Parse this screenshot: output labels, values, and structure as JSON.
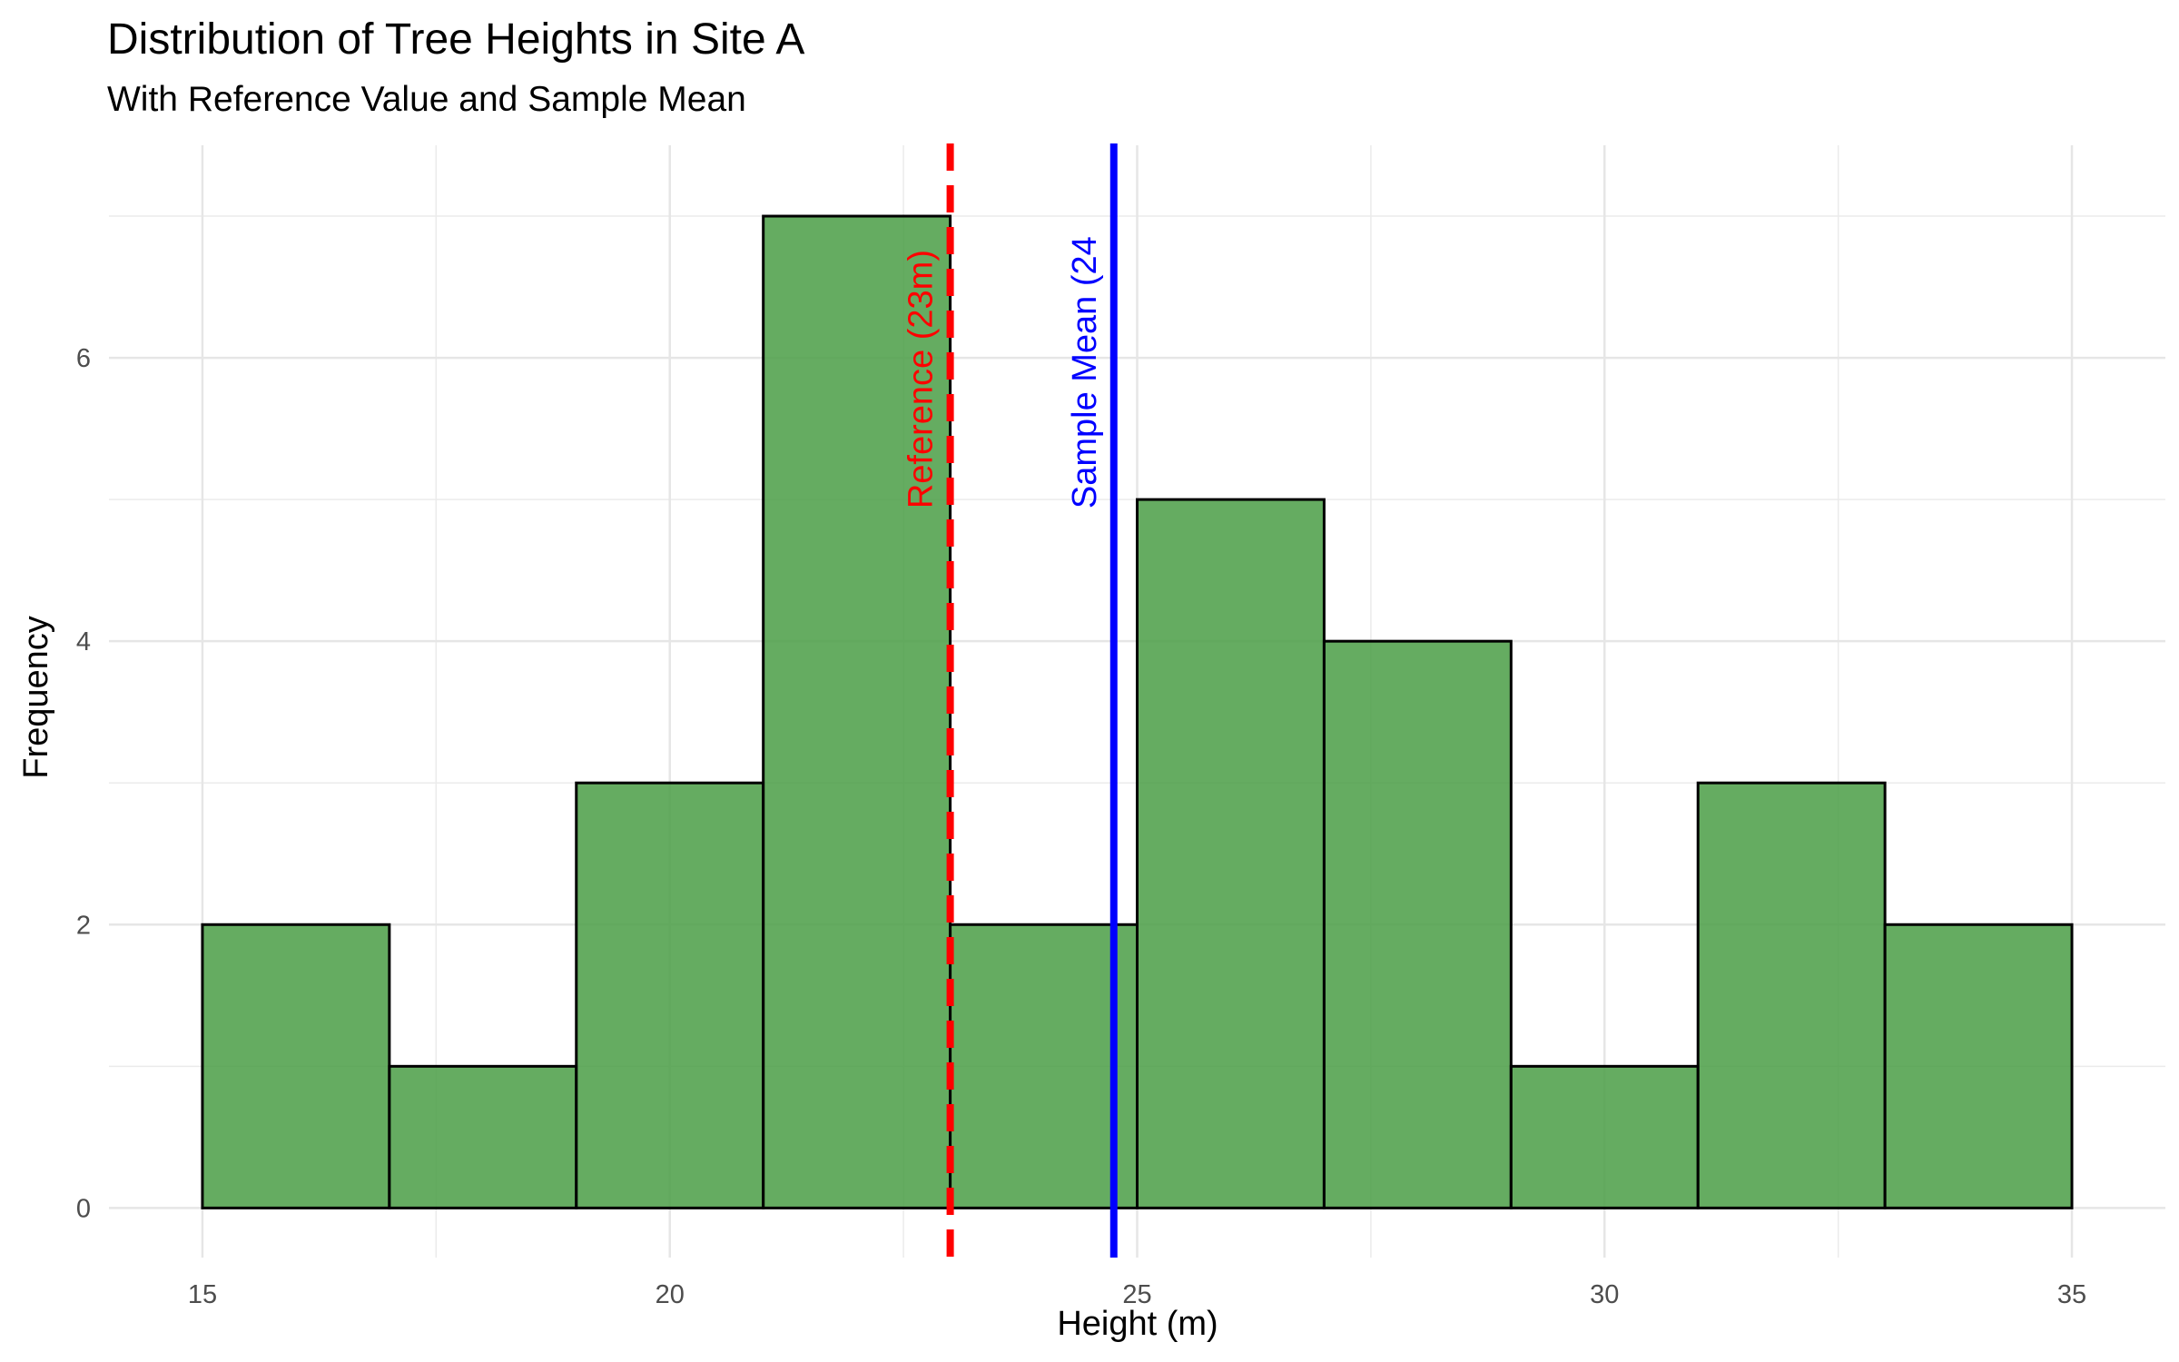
{
  "chart_data": {
    "type": "bar",
    "title": "Distribution of Tree Heights in Site A",
    "subtitle": "With Reference Value and Sample Mean",
    "xlabel": "Height (m)",
    "ylabel": "Frequency",
    "xlim": [
      14,
      36
    ],
    "ylim": [
      -0.35,
      7.5
    ],
    "xticks": [
      15,
      20,
      25,
      30,
      35
    ],
    "yticks": [
      0,
      2,
      4,
      6
    ],
    "grid": true,
    "bins": [
      {
        "x0": 15,
        "x1": 17,
        "count": 2
      },
      {
        "x0": 17,
        "x1": 19,
        "count": 1
      },
      {
        "x0": 19,
        "x1": 21,
        "count": 3
      },
      {
        "x0": 21,
        "x1": 23,
        "count": 7
      },
      {
        "x0": 23,
        "x1": 25,
        "count": 2
      },
      {
        "x0": 25,
        "x1": 27,
        "count": 5
      },
      {
        "x0": 27,
        "x1": 29,
        "count": 4
      },
      {
        "x0": 29,
        "x1": 31,
        "count": 1
      },
      {
        "x0": 31,
        "x1": 33,
        "count": 3
      },
      {
        "x0": 33,
        "x1": 35,
        "count": 2
      }
    ],
    "reference_lines": [
      {
        "value": 23,
        "label": "Reference (23m)",
        "color": "#ff0000",
        "style": "dashed"
      },
      {
        "value": 24.75,
        "label": "Sample Mean (24",
        "color": "#0000ff",
        "style": "solid"
      }
    ],
    "bar_fill": "#4a9e45",
    "bar_stroke": "#000000"
  }
}
